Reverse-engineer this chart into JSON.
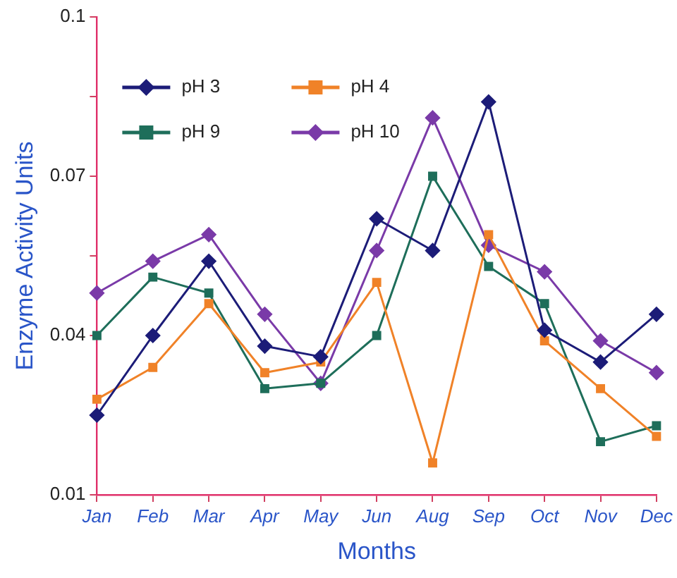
{
  "chart_data": {
    "type": "line",
    "xlabel": "Months",
    "ylabel": "Enzyme Activity Units",
    "categories": [
      "Jan",
      "Feb",
      "Mar",
      "Apr",
      "May",
      "Jun",
      "Aug",
      "Sep",
      "Oct",
      "Nov",
      "Dec"
    ],
    "series": [
      {
        "name": "pH 3",
        "color": "#1c1c78",
        "marker": "diamond",
        "values": [
          0.025,
          0.04,
          0.054,
          0.038,
          0.036,
          0.062,
          0.056,
          0.084,
          0.041,
          0.035,
          0.044
        ]
      },
      {
        "name": "pH 4",
        "color": "#f08228",
        "marker": "square",
        "values": [
          0.028,
          0.034,
          0.046,
          0.033,
          0.035,
          0.05,
          0.016,
          0.059,
          0.039,
          0.03,
          0.021
        ]
      },
      {
        "name": "pH 9",
        "color": "#1e6e5a",
        "marker": "square",
        "values": [
          0.04,
          0.051,
          0.048,
          0.03,
          0.031,
          0.04,
          0.07,
          0.053,
          0.046,
          0.02,
          0.023
        ]
      },
      {
        "name": "pH 10",
        "color": "#7a3aa8",
        "marker": "diamond",
        "values": [
          0.048,
          0.054,
          0.059,
          0.044,
          0.031,
          0.056,
          0.081,
          0.057,
          0.052,
          0.039,
          0.033
        ]
      }
    ],
    "ylim": [
      0.01,
      0.1
    ],
    "yticks": [
      0.01,
      {
        "value": 0.025,
        "label": null
      },
      0.04,
      {
        "value": 0.055,
        "label": null
      },
      0.07,
      {
        "value": 0.085,
        "label": null
      },
      0.1
    ],
    "grid": false,
    "legend": "top left",
    "line_style": "solid"
  }
}
